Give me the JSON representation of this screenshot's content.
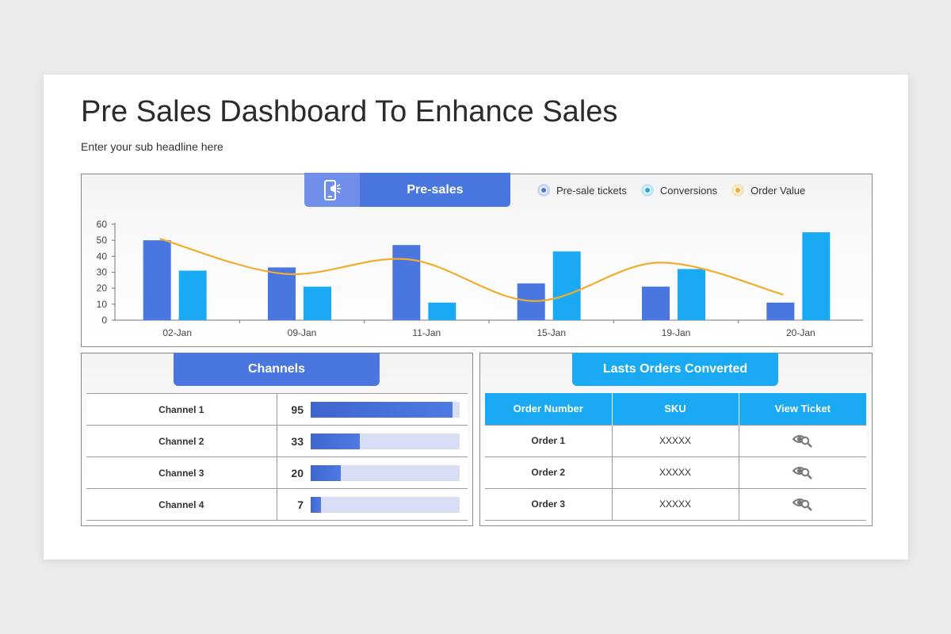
{
  "title": "Pre Sales Dashboard To Enhance Sales",
  "subtitle": "Enter your sub headline here",
  "chart_panel": {
    "tab_label": "Pre-sales",
    "tab_icon": "phone-megaphone-icon"
  },
  "colors": {
    "presale": "#4a76e0",
    "conversion": "#1aa9f3",
    "order_value": "#f2ad2f"
  },
  "chart_data": {
    "type": "bar",
    "categories": [
      "02-Jan",
      "09-Jan",
      "11-Jan",
      "15-Jan",
      "19-Jan",
      "20-Jan"
    ],
    "series": [
      {
        "name": "Pre-sale tickets",
        "type": "bar",
        "values": [
          50,
          33,
          47,
          23,
          21,
          11
        ]
      },
      {
        "name": "Conversions",
        "type": "bar",
        "values": [
          31,
          21,
          11,
          43,
          32,
          55
        ]
      },
      {
        "name": "Order Value",
        "type": "line",
        "values": [
          51,
          29,
          38,
          12,
          36,
          16
        ]
      }
    ],
    "ylim": [
      0,
      60
    ],
    "yticks": [
      0,
      10,
      20,
      30,
      40,
      50,
      60
    ],
    "legend": "top-right",
    "grid": false
  },
  "channels": {
    "tab_label": "Channels",
    "max": 100,
    "rows": [
      {
        "name": "Channel 1",
        "value": 95
      },
      {
        "name": "Channel 2",
        "value": 33
      },
      {
        "name": "Channel 3",
        "value": 20
      },
      {
        "name": "Channel 4",
        "value": 7
      }
    ]
  },
  "orders": {
    "tab_label": "Lasts Orders Converted",
    "columns": [
      "Order Number",
      "SKU",
      "View Ticket"
    ],
    "rows": [
      {
        "order": "Order 1",
        "sku": "XXXXX",
        "icon": "view-search-icon"
      },
      {
        "order": "Order 2",
        "sku": "XXXXX",
        "icon": "view-search-icon"
      },
      {
        "order": "Order 3",
        "sku": "XXXXX",
        "icon": "view-search-icon"
      }
    ]
  }
}
